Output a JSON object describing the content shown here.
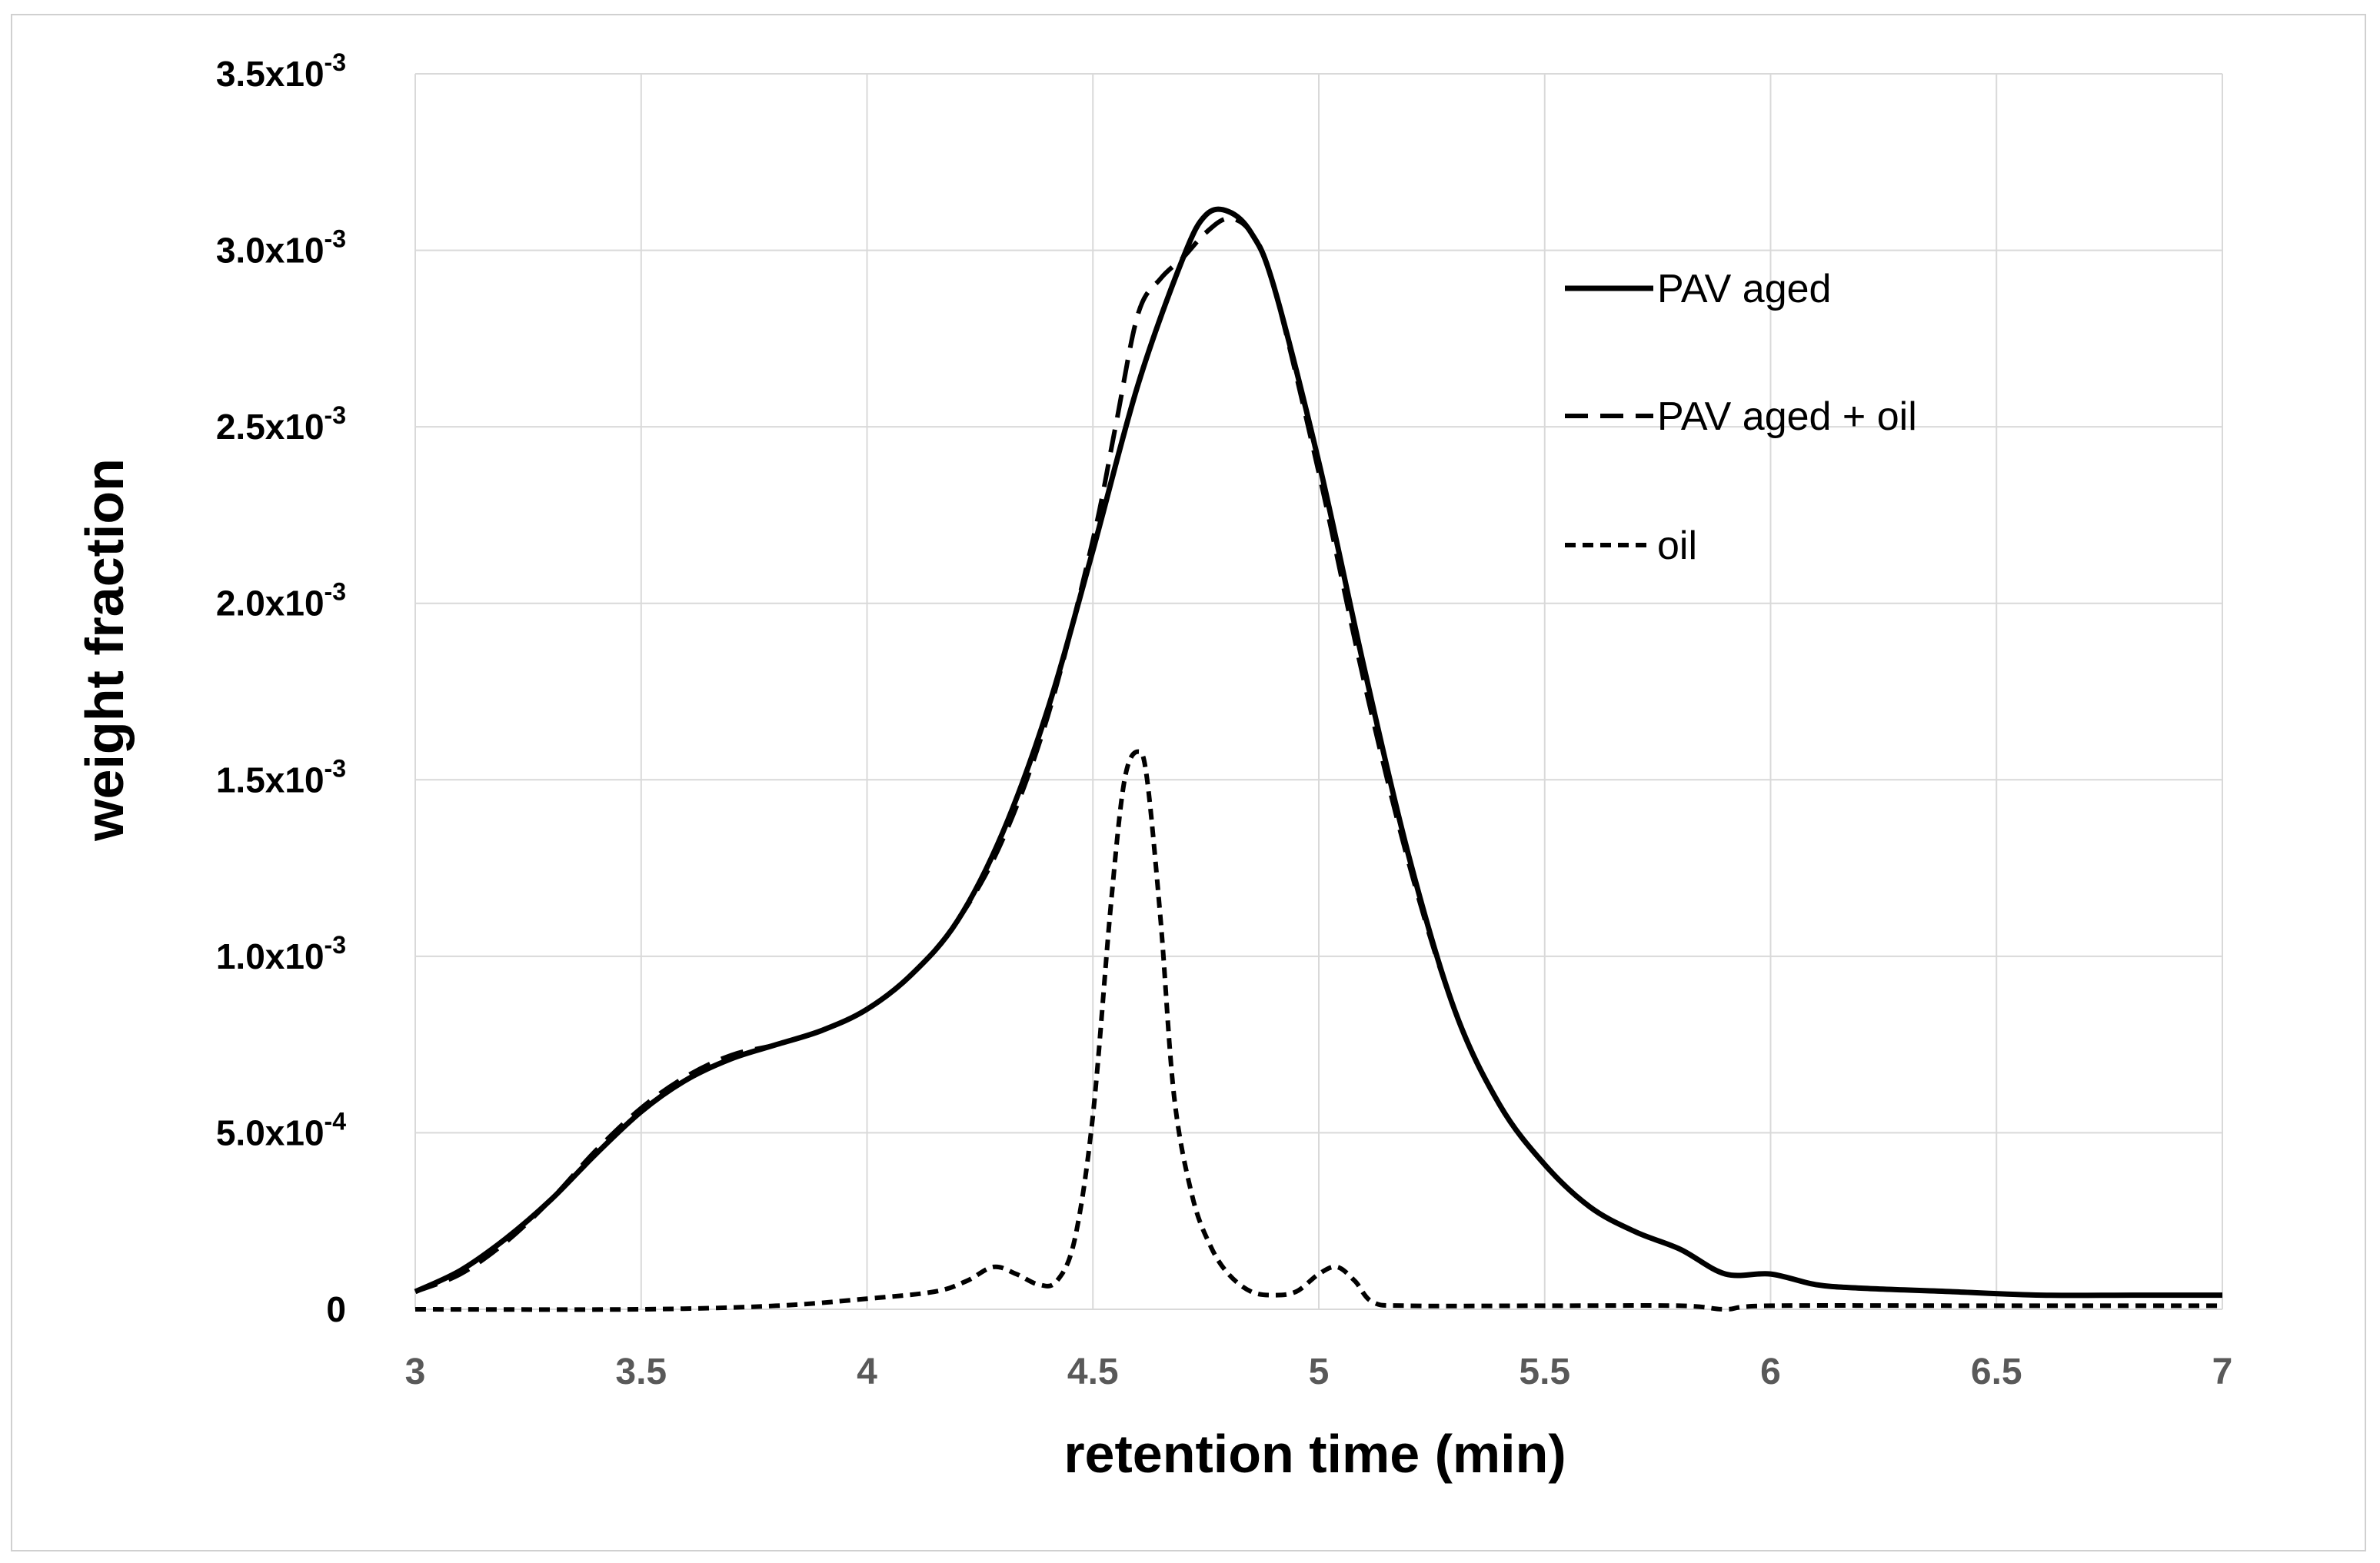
{
  "chart_data": {
    "type": "line",
    "title": "",
    "xlabel": "retention time (min)",
    "ylabel": "weight fraction",
    "xlim": [
      3,
      7
    ],
    "ylim": [
      0,
      0.0035
    ],
    "grid": true,
    "legend_position": "top-right",
    "x_ticks": [
      "3",
      "3.5",
      "4",
      "4.5",
      "5",
      "5.5",
      "6",
      "6.5",
      "7"
    ],
    "y_ticks": [
      {
        "value": 0,
        "mantissa": "0",
        "exponent": ""
      },
      {
        "value": 0.0005,
        "mantissa": "5.0x10",
        "exponent": "-4"
      },
      {
        "value": 0.001,
        "mantissa": "1.0x10",
        "exponent": "-3"
      },
      {
        "value": 0.0015,
        "mantissa": "1.5x10",
        "exponent": "-3"
      },
      {
        "value": 0.002,
        "mantissa": "2.0x10",
        "exponent": "-3"
      },
      {
        "value": 0.0025,
        "mantissa": "2.5x10",
        "exponent": "-3"
      },
      {
        "value": 0.003,
        "mantissa": "3.0x10",
        "exponent": "-3"
      },
      {
        "value": 0.0035,
        "mantissa": "3.5x10",
        "exponent": "-3"
      }
    ],
    "series": [
      {
        "name": "PAV aged",
        "style": "solid",
        "color": "#000000",
        "x": [
          3.0,
          3.1,
          3.2,
          3.3,
          3.4,
          3.5,
          3.6,
          3.7,
          3.8,
          3.9,
          4.0,
          4.1,
          4.2,
          4.3,
          4.4,
          4.5,
          4.6,
          4.7,
          4.75,
          4.8,
          4.85,
          4.9,
          5.0,
          5.1,
          5.2,
          5.3,
          5.4,
          5.5,
          5.6,
          5.7,
          5.8,
          5.9,
          6.0,
          6.1,
          6.2,
          6.4,
          6.6,
          6.8,
          7.0
        ],
        "y": [
          5e-05,
          0.00011,
          0.0002,
          0.00031,
          0.00044,
          0.00056,
          0.00065,
          0.00071,
          0.00075,
          0.00079,
          0.00085,
          0.00095,
          0.0011,
          0.00135,
          0.0017,
          0.00215,
          0.00262,
          0.00298,
          0.0031,
          0.00311,
          0.00305,
          0.0029,
          0.0024,
          0.00182,
          0.00128,
          0.00085,
          0.00058,
          0.00041,
          0.00029,
          0.00022,
          0.00017,
          0.0001,
          0.0001,
          7e-05,
          6e-05,
          5e-05,
          4e-05,
          4e-05,
          4e-05
        ]
      },
      {
        "name": "PAV aged + oil",
        "style": "dashed",
        "color": "#000000",
        "x": [
          3.0,
          3.1,
          3.2,
          3.3,
          3.4,
          3.5,
          3.6,
          3.7,
          3.8,
          3.9,
          4.0,
          4.1,
          4.2,
          4.3,
          4.4,
          4.5,
          4.55,
          4.6,
          4.65,
          4.7,
          4.75,
          4.8,
          4.85,
          4.9,
          5.0,
          5.1,
          5.2,
          5.3,
          5.4,
          5.5,
          5.6,
          5.7,
          5.8,
          5.9,
          6.0,
          6.1,
          6.2,
          6.4,
          6.6,
          6.8,
          7.0
        ],
        "y": [
          5e-05,
          0.0001,
          0.00019,
          0.00031,
          0.00045,
          0.00057,
          0.00066,
          0.00072,
          0.00075,
          0.00079,
          0.00085,
          0.00095,
          0.0011,
          0.00133,
          0.00168,
          0.00218,
          0.0025,
          0.00282,
          0.00292,
          0.00298,
          0.00305,
          0.00309,
          0.00305,
          0.0029,
          0.00237,
          0.00178,
          0.00126,
          0.00085,
          0.00058,
          0.00041,
          0.00029,
          0.00022,
          0.00017,
          0.0001,
          0.0001,
          7e-05,
          6e-05,
          5e-05,
          4e-05,
          4e-05,
          4e-05
        ]
      },
      {
        "name": "oil",
        "style": "dotted",
        "color": "#000000",
        "x": [
          3.0,
          3.5,
          3.8,
          4.0,
          4.15,
          4.22,
          4.28,
          4.33,
          4.38,
          4.42,
          4.46,
          4.5,
          4.54,
          4.57,
          4.6,
          4.62,
          4.65,
          4.68,
          4.72,
          4.76,
          4.8,
          4.85,
          4.9,
          4.95,
          5.0,
          5.04,
          5.08,
          5.12,
          5.2,
          5.5,
          5.8,
          5.9,
          6.0,
          6.5,
          7.0
        ],
        "y": [
          0.0,
          0.0,
          1e-05,
          3e-05,
          5e-05,
          8e-05,
          0.00012,
          0.0001,
          7e-05,
          8e-05,
          0.0002,
          0.00055,
          0.00115,
          0.0015,
          0.00158,
          0.0015,
          0.0011,
          0.0006,
          0.00032,
          0.00018,
          0.0001,
          5e-05,
          4e-05,
          5e-05,
          0.0001,
          0.00012,
          8e-05,
          2e-05,
          1e-05,
          1e-05,
          1e-05,
          0.0,
          1e-05,
          1e-05,
          1e-05
        ]
      }
    ]
  }
}
